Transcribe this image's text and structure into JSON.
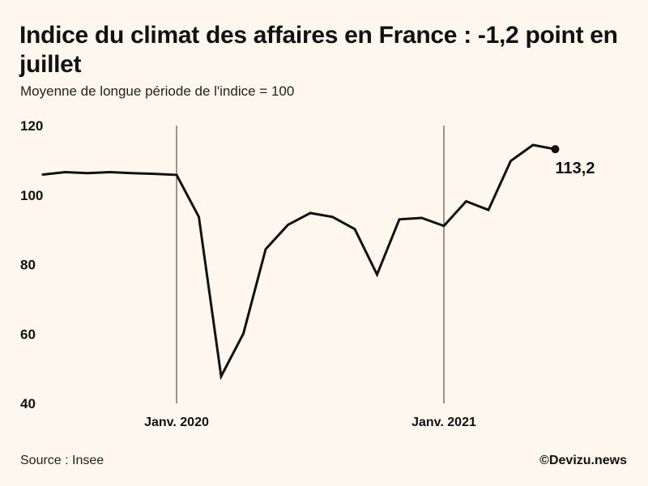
{
  "header": {
    "title": "Indice du climat des affaires en France : -1,2 point en juillet",
    "subtitle": "Moyenne de longue période de l'indice = 100"
  },
  "footer": {
    "source": "Source : Insee",
    "credit": "©Devizu.news"
  },
  "colors": {
    "background": "#fdf7ee",
    "line": "#111111",
    "marker_lines": "#333333"
  },
  "chart_data": {
    "type": "line",
    "title": "Indice du climat des affaires en France : -1,2 point en juillet",
    "subtitle": "Moyenne de longue période de l'indice = 100",
    "xlabel": "",
    "ylabel": "",
    "ylim": [
      40,
      120
    ],
    "yticks": [
      120,
      100,
      80,
      60,
      40
    ],
    "ytick_labels": [
      "120",
      "100",
      "80",
      "60",
      "40"
    ],
    "x": [
      "2019-07",
      "2019-08",
      "2019-09",
      "2019-10",
      "2019-11",
      "2019-12",
      "2020-01",
      "2020-02",
      "2020-03",
      "2020-04",
      "2020-05",
      "2020-06",
      "2020-07",
      "2020-08",
      "2020-09",
      "2020-10",
      "2020-11",
      "2020-12",
      "2021-01",
      "2021-02",
      "2021-03",
      "2021-04",
      "2021-05",
      "2021-06",
      "2021-07",
      "2021-08",
      "2021-09",
      "2021-10",
      "2021-11",
      "2021-12",
      "2022-01",
      "2022-02",
      "2022-03",
      "2022-04",
      "2022-05",
      "2022-06",
      "2022-07"
    ],
    "xlim": [
      "2019-07",
      "2022-07"
    ],
    "x_reference_lines": [
      {
        "x": "2020-01",
        "label": "Janv. 2020"
      },
      {
        "x": "2021-01",
        "label": "Janv. 2021"
      }
    ],
    "series": [
      {
        "values": [
          105.9,
          106.6,
          106.3,
          106.6,
          106.3,
          106.1,
          105.8,
          93.7,
          47.8,
          60.1,
          84.4,
          91.4,
          94.8,
          93.7,
          90.2,
          77.1,
          93.0,
          93.4,
          91.1,
          98.2,
          95.7,
          109.8,
          114.4,
          113.2,
          null,
          null,
          null,
          null,
          null,
          null,
          null,
          null,
          null,
          null,
          null,
          null,
          null
        ],
        "x": [
          "2019-07",
          "2019-08",
          "2019-09",
          "2019-10",
          "2019-11",
          "2019-12",
          "2020-01",
          "2020-02",
          "2020-03",
          "2020-04",
          "2020-05",
          "2020-06",
          "2020-07",
          "2020-08",
          "2020-09",
          "2020-10",
          "2020-11",
          "2020-12",
          "2021-01",
          "2021-02",
          "2021-03",
          "2021-04",
          "2021-05",
          "2021-06",
          "2021-07",
          "2021-08",
          "2021-09",
          "2021-10",
          "2021-11",
          "2021-12",
          "2022-01",
          "2022-02",
          "2022-03",
          "2022-04",
          "2022-05",
          "2022-06",
          "2022-07"
        ],
        "color": "#111111"
      }
    ],
    "points": [
      {
        "x": "2019-07",
        "y": 105.9
      },
      {
        "x": "2019-08",
        "y": 106.6
      },
      {
        "x": "2019-09",
        "y": 106.3
      },
      {
        "x": "2019-10",
        "y": 106.6
      },
      {
        "x": "2019-11",
        "y": 106.3
      },
      {
        "x": "2019-12",
        "y": 106.1
      },
      {
        "x": "2020-01",
        "y": 105.8
      },
      {
        "x": "2020-02",
        "y": 93.7
      },
      {
        "x": "2020-03",
        "y": 47.8
      },
      {
        "x": "2020-04",
        "y": 60.1
      },
      {
        "x": "2020-05",
        "y": 84.4
      },
      {
        "x": "2020-06",
        "y": 91.4
      },
      {
        "x": "2020-07",
        "y": 94.8
      },
      {
        "x": "2020-08",
        "y": 93.7
      },
      {
        "x": "2020-09",
        "y": 90.2
      },
      {
        "x": "2020-10",
        "y": 77.1
      },
      {
        "x": "2020-11",
        "y": 93.0
      },
      {
        "x": "2020-12",
        "y": 93.4
      },
      {
        "x": "2021-01",
        "y": 91.1
      },
      {
        "x": "2021-02",
        "y": 98.2
      },
      {
        "x": "2021-03",
        "y": 95.7
      },
      {
        "x": "2021-04",
        "y": 109.8
      },
      {
        "x": "2021-05",
        "y": 114.4
      },
      {
        "x": "2021-06",
        "y": 113.2
      }
    ],
    "last_point_label": "113,2",
    "grid": false,
    "legend": "none"
  }
}
